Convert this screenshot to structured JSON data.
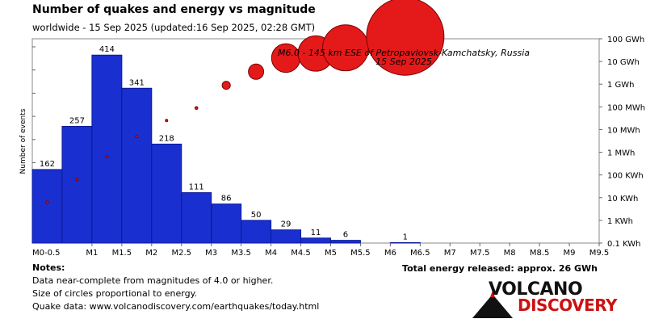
{
  "header": {
    "title": "Number of quakes and energy vs magnitude",
    "subtitle": "worldwide - 15 Sep 2025 (updated:16 Sep 2025, 02:28 GMT)"
  },
  "chart_data": {
    "type": "bar",
    "ylabel": "Number of events",
    "x_ticks": [
      "M0-0.5",
      "M1",
      "M1.5",
      "M2",
      "M2.5",
      "M3",
      "M3.5",
      "M4",
      "M4.5",
      "M5",
      "M5.5",
      "M6",
      "M6.5",
      "M7",
      "M7.5",
      "M8",
      "M8.5",
      "M9",
      "M9.5"
    ],
    "bars": [
      {
        "mag_from": 0.0,
        "mag_to": 0.5,
        "count": 162
      },
      {
        "mag_from": 0.5,
        "mag_to": 1.0,
        "count": 257
      },
      {
        "mag_from": 1.0,
        "mag_to": 1.5,
        "count": 414
      },
      {
        "mag_from": 1.5,
        "mag_to": 2.0,
        "count": 341
      },
      {
        "mag_from": 2.0,
        "mag_to": 2.5,
        "count": 218
      },
      {
        "mag_from": 2.5,
        "mag_to": 3.0,
        "count": 111
      },
      {
        "mag_from": 3.0,
        "mag_to": 3.5,
        "count": 86
      },
      {
        "mag_from": 3.5,
        "mag_to": 4.0,
        "count": 50
      },
      {
        "mag_from": 4.0,
        "mag_to": 4.5,
        "count": 29
      },
      {
        "mag_from": 4.5,
        "mag_to": 5.0,
        "count": 11
      },
      {
        "mag_from": 5.0,
        "mag_to": 5.5,
        "count": 6
      },
      {
        "mag_from": 6.0,
        "mag_to": 6.5,
        "count": 1
      }
    ],
    "ymax": 450,
    "energy_axis": {
      "labels": [
        "0.1 KWh",
        "1 KWh",
        "10 KWh",
        "100 KWh",
        "1 MWh",
        "10 MWh",
        "100 MWh",
        "1 GWh",
        "10 GWh",
        "100 GWh"
      ],
      "log10_min": -1,
      "log10_max": 8
    },
    "energy_points": [
      {
        "mag": 0.25,
        "log10_kwh": 0.8
      },
      {
        "mag": 0.75,
        "log10_kwh": 1.8
      },
      {
        "mag": 1.25,
        "log10_kwh": 2.8
      },
      {
        "mag": 1.75,
        "log10_kwh": 3.7
      },
      {
        "mag": 2.25,
        "log10_kwh": 4.4
      },
      {
        "mag": 2.75,
        "log10_kwh": 4.95
      },
      {
        "mag": 3.25,
        "log10_kwh": 5.95
      },
      {
        "mag": 3.75,
        "log10_kwh": 6.55
      },
      {
        "mag": 4.25,
        "log10_kwh": 7.15
      },
      {
        "mag": 4.75,
        "log10_kwh": 7.35
      },
      {
        "mag": 5.25,
        "log10_kwh": 7.6
      },
      {
        "mag": 6.25,
        "log10_kwh": 8.1
      }
    ],
    "annotation": {
      "line1": "M6.0 - 145 km ESE of Petropavlovsk-Kamchatsky, Russia",
      "line2": "15 Sep 2025"
    },
    "colors": {
      "bar_fill": "#1a2fcf",
      "bar_stroke": "#0a1a99",
      "circle_fill": "#e41a1a",
      "circle_stroke": "#7a0000"
    }
  },
  "total_energy": "Total energy released: approx. 26 GWh",
  "notes": {
    "heading": "Notes:",
    "line1": "Data near-complete from magnitudes of 4.0 or higher.",
    "line2": "Size of circles proportional to energy.",
    "line3": "Quake data: www.volcanodiscovery.com/earthquakes/today.html"
  },
  "logo": {
    "line1": "VOLCANO",
    "line2": "DISCOVERY"
  }
}
